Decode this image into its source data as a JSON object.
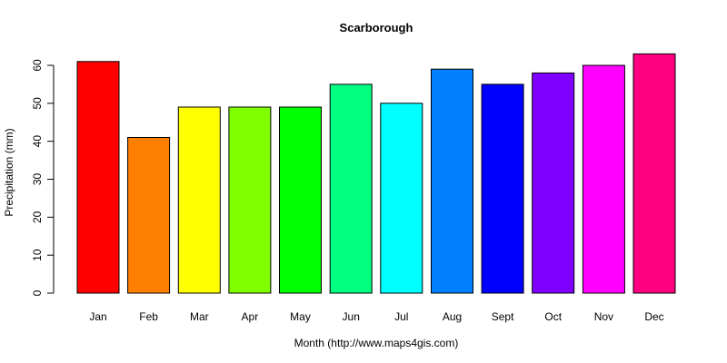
{
  "chart_data": {
    "type": "bar",
    "title": "Scarborough",
    "xlabel": "Month (http://www.maps4gis.com)",
    "ylabel": "Precipitation (mm)",
    "categories": [
      "Jan",
      "Feb",
      "Mar",
      "Apr",
      "May",
      "Jun",
      "Jul",
      "Aug",
      "Sept",
      "Oct",
      "Nov",
      "Dec"
    ],
    "values": [
      61,
      41,
      49,
      49,
      49,
      55,
      50,
      59,
      55,
      58,
      60,
      63
    ],
    "colors": [
      "#FF0000",
      "#FF8000",
      "#FFFF00",
      "#80FF00",
      "#00FF00",
      "#00FF80",
      "#00FFFF",
      "#0080FF",
      "#0000FF",
      "#8000FF",
      "#FF00FF",
      "#FF0080"
    ],
    "yticks": [
      0,
      10,
      20,
      30,
      40,
      50,
      60
    ],
    "ylim": [
      0,
      63
    ],
    "grid": false,
    "legend": null
  }
}
